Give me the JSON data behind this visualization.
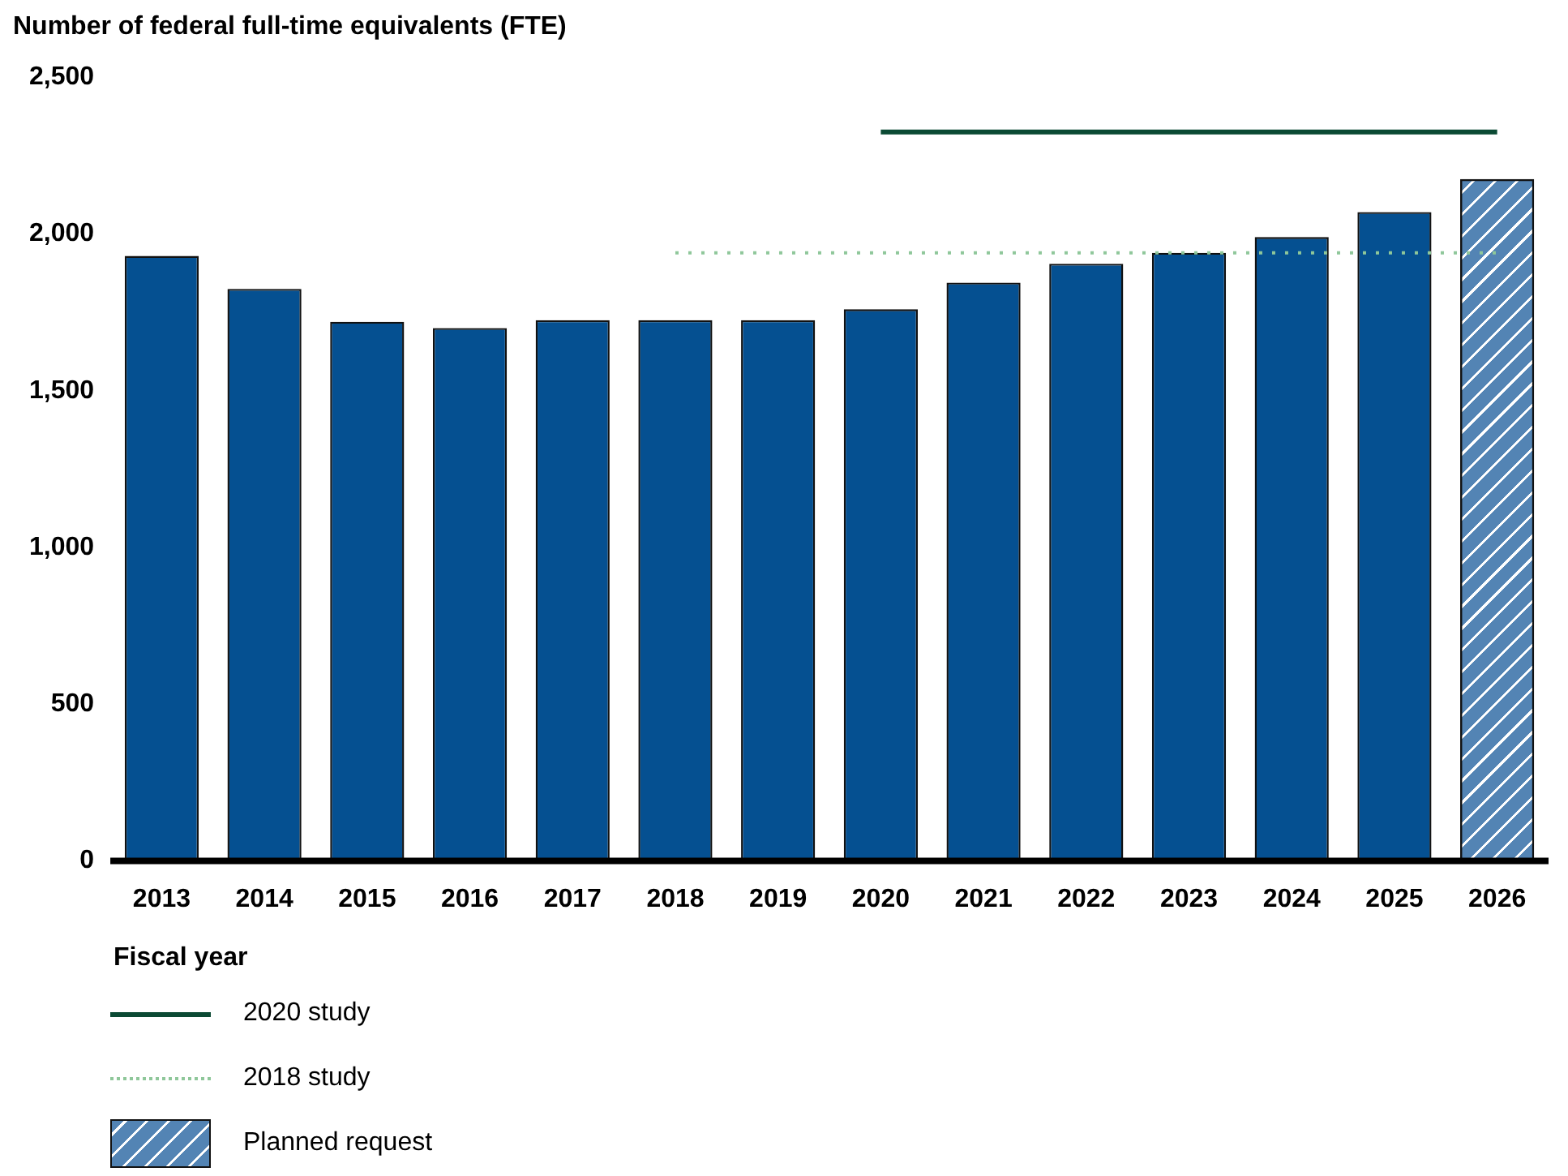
{
  "chart_data": {
    "type": "bar",
    "ylabel": "Number of federal full-time equivalents (FTE)",
    "xlabel": "Fiscal year",
    "categories": [
      "2013",
      "2014",
      "2015",
      "2016",
      "2017",
      "2018",
      "2019",
      "2020",
      "2021",
      "2022",
      "2023",
      "2024",
      "2025",
      "2026"
    ],
    "series": [
      {
        "name": "2020 study",
        "type": "line",
        "color": "#0b4a34",
        "line_style": "solid",
        "values": [
          null,
          null,
          null,
          null,
          null,
          null,
          null,
          2325,
          2325,
          2325,
          2325,
          2325,
          2325,
          2325
        ]
      },
      {
        "name": "2018 study",
        "type": "line",
        "color": "#8fc79a",
        "line_style": "dotted",
        "values": [
          null,
          null,
          null,
          null,
          null,
          1940,
          1940,
          1940,
          1940,
          1940,
          1940,
          1940,
          1940,
          1940
        ]
      },
      {
        "color": "#055091",
        "values": [
          1930,
          1825,
          1720,
          1700,
          1725,
          1725,
          1725,
          1760,
          1845,
          1905,
          1940,
          1990,
          2070,
          null
        ]
      },
      {
        "name": "Planned request",
        "color": "#5384b4",
        "values": [
          null,
          null,
          null,
          null,
          null,
          null,
          null,
          null,
          null,
          null,
          null,
          null,
          null,
          2175
        ]
      }
    ],
    "ylim": [
      0,
      2500
    ],
    "yticks": [
      {
        "value": 0,
        "label": "0"
      },
      {
        "value": 500,
        "label": "500"
      },
      {
        "value": 1000,
        "label": "1,000"
      },
      {
        "value": 1500,
        "label": "1,500"
      },
      {
        "value": 2000,
        "label": "2,000"
      },
      {
        "value": 2500,
        "label": "2,500"
      }
    ],
    "grid": false,
    "legend": "bottom",
    "marker": "none"
  }
}
